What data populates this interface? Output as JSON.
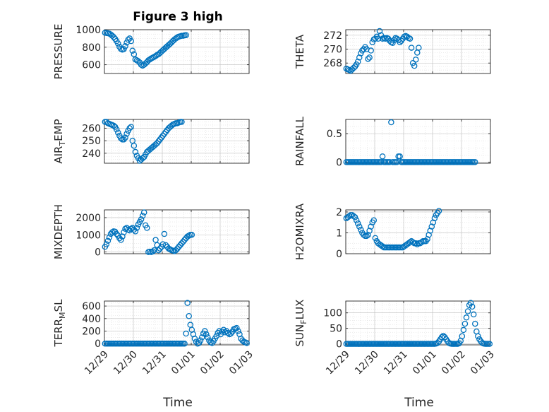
{
  "figure": {
    "title": "Figure 3 high",
    "x_label": "Time"
  },
  "chart_data": [
    {
      "type": "scatter",
      "name": "pressure",
      "title": "Figure 3 high",
      "ylabel": "PRESSURE",
      "ylim": [
        500,
        1000
      ],
      "yticks": [
        600,
        800,
        1000
      ],
      "ytick_labels": [
        "600",
        "800",
        "1000"
      ],
      "xlim": [
        0,
        5
      ],
      "xticks": [
        0,
        1,
        2,
        3,
        4,
        5
      ],
      "xtick_labels": [],
      "x_start": 0.02,
      "x_step": 0.05,
      "y": [
        965,
        962,
        960,
        955,
        945,
        930,
        915,
        895,
        870,
        842,
        805,
        780,
        772,
        778,
        812,
        852,
        885,
        900,
        870,
        760,
        720,
        660,
        650,
        640,
        625,
        600,
        590,
        600,
        615,
        630,
        650,
        660,
        672,
        680,
        690,
        700,
        712,
        720,
        735,
        750,
        765,
        780,
        795,
        810,
        825,
        840,
        855,
        872,
        888,
        900,
        912,
        920,
        925,
        930,
        930,
        935,
        938
      ]
    },
    {
      "type": "scatter",
      "name": "theta",
      "ylabel": "THETA",
      "ylim": [
        266.5,
        272.8
      ],
      "yticks": [
        268,
        270,
        272
      ],
      "ytick_labels": [
        "268",
        "270",
        "272"
      ],
      "xlim": [
        0,
        5
      ],
      "xticks": [
        0,
        1,
        2,
        3,
        4,
        5
      ],
      "xtick_labels": [],
      "x_start": 0.02,
      "x_step": 0.05,
      "y": [
        267.2,
        267.1,
        267.0,
        266.9,
        267.1,
        267.3,
        267.5,
        267.8,
        268.2,
        268.8,
        269.4,
        269.8,
        270.0,
        270.3,
        270.0,
        268.6,
        268.8,
        269.8,
        271.0,
        271.4,
        271.5,
        271.8,
        271.5,
        272.6,
        272.0,
        271.5,
        271.6,
        271.5,
        271.6,
        271.5,
        271.2,
        271.0,
        270.9,
        271.3,
        271.6,
        271.5,
        271.3,
        271.0,
        271.2,
        271.5,
        271.8,
        271.9,
        271.8,
        271.6,
        271.5,
        270.2,
        268.0,
        267.6,
        268.5,
        269.5,
        270.2
      ]
    },
    {
      "type": "scatter",
      "name": "air_temp",
      "ylabel": "AIR",
      "ylabel_sub": "T",
      "ylabel_rest": "EMP",
      "ylim": [
        232,
        267
      ],
      "yticks": [
        240,
        250,
        260
      ],
      "ytick_labels": [
        "240",
        "250",
        "260"
      ],
      "xlim": [
        0,
        5
      ],
      "xticks": [
        0,
        1,
        2,
        3,
        4,
        5
      ],
      "xtick_labels": [],
      "x_start": 0.02,
      "x_step": 0.05,
      "y": [
        265,
        265,
        264,
        263.5,
        263,
        262.5,
        262,
        261,
        259,
        256.5,
        254,
        252,
        251,
        251,
        252.5,
        255.5,
        258,
        260,
        261,
        250,
        246,
        241,
        238,
        236,
        234,
        235,
        236,
        237,
        239,
        241,
        242,
        243,
        244,
        245,
        246,
        247,
        248,
        249.5,
        251,
        252.5,
        254,
        255.5,
        257,
        258.5,
        260,
        261,
        262,
        263,
        263.5,
        264,
        264,
        264.5,
        265,
        265
      ]
    },
    {
      "type": "scatter",
      "name": "rainfall",
      "ylabel": "RAINFALL",
      "ylim": [
        -0.02,
        0.75
      ],
      "yticks": [
        0,
        0.5
      ],
      "ytick_labels": [
        "0",
        "0.5"
      ],
      "xlim": [
        0,
        5
      ],
      "xticks": [
        0,
        1,
        2,
        3,
        4,
        5
      ],
      "xtick_labels": [],
      "x_start": 0.02,
      "x_step": 0.05,
      "y": [
        0,
        0,
        0,
        0,
        0,
        0,
        0,
        0,
        0,
        0,
        0,
        0,
        0,
        0,
        0,
        0,
        0,
        0,
        0,
        0,
        0,
        0,
        0,
        0,
        0,
        0.1,
        0,
        0,
        0,
        0,
        0,
        0.7,
        0,
        0,
        0,
        0,
        0.1,
        0.1,
        0,
        0,
        0,
        0,
        0,
        0,
        0,
        0,
        0,
        0,
        0,
        0,
        0,
        0,
        0,
        0,
        0,
        0,
        0,
        0,
        0,
        0,
        0,
        0,
        0,
        0,
        0,
        0,
        0,
        0,
        0,
        0,
        0,
        0,
        0,
        0,
        0,
        0,
        0,
        0,
        0,
        0,
        0,
        0,
        0,
        0,
        0,
        0,
        0,
        0,
        0,
        0
      ]
    },
    {
      "type": "scatter",
      "name": "mixdepth",
      "ylabel": "MIXDEPTH",
      "ylim": [
        -100,
        2450
      ],
      "yticks": [
        0,
        1000,
        2000
      ],
      "ytick_labels": [
        "0",
        "1000",
        "2000"
      ],
      "xlim": [
        0,
        5
      ],
      "xticks": [
        0,
        1,
        2,
        3,
        4,
        5
      ],
      "xtick_labels": [],
      "x_start": 0.02,
      "x_step": 0.05,
      "y": [
        300,
        450,
        650,
        850,
        1050,
        1150,
        1200,
        1180,
        1050,
        950,
        800,
        700,
        900,
        1150,
        1350,
        1400,
        1300,
        1250,
        1350,
        1400,
        1300,
        1200,
        1400,
        1600,
        1750,
        1900,
        2100,
        2300,
        1550,
        1400,
        0,
        20,
        0,
        30,
        100,
        700,
        400,
        100,
        200,
        300,
        450,
        1050,
        400,
        300,
        200,
        150,
        100,
        80,
        50,
        100,
        200,
        300,
        400,
        500,
        600,
        700,
        800,
        900,
        950,
        1000,
        1000
      ]
    },
    {
      "type": "scatter",
      "name": "h2omixra",
      "ylabel": "H2OMIXRA",
      "ylim": [
        0,
        2.1
      ],
      "yticks": [
        0,
        1,
        2
      ],
      "ytick_labels": [
        "0",
        "1",
        "2"
      ],
      "xlim": [
        0,
        5
      ],
      "xticks": [
        0,
        1,
        2,
        3,
        4,
        5
      ],
      "xtick_labels": [],
      "x_start": 0.02,
      "x_step": 0.05,
      "y": [
        1.7,
        1.75,
        1.8,
        1.85,
        1.85,
        1.8,
        1.75,
        1.6,
        1.45,
        1.3,
        1.15,
        1.0,
        0.9,
        0.85,
        0.85,
        0.9,
        1.1,
        1.3,
        1.5,
        1.6,
        0.75,
        0.6,
        0.5,
        0.45,
        0.4,
        0.35,
        0.3,
        0.3,
        0.3,
        0.3,
        0.3,
        0.3,
        0.3,
        0.3,
        0.3,
        0.3,
        0.3,
        0.3,
        0.3,
        0.3,
        0.35,
        0.4,
        0.45,
        0.5,
        0.55,
        0.6,
        0.55,
        0.5,
        0.5,
        0.45,
        0.5,
        0.5,
        0.55,
        0.6,
        0.6,
        0.6,
        0.7,
        0.9,
        1.1,
        1.3,
        1.5,
        1.7,
        1.85,
        1.95,
        2.05
      ]
    },
    {
      "type": "scatter",
      "name": "terr_msl",
      "ylabel": "TERR",
      "ylabel_sub": "M",
      "ylabel_rest": "SL",
      "ylim": [
        -20,
        680
      ],
      "yticks": [
        0,
        200,
        400,
        600
      ],
      "ytick_labels": [
        "0",
        "200",
        "400",
        "600"
      ],
      "xlim": [
        0,
        5
      ],
      "xticks": [
        0,
        1,
        2,
        3,
        4,
        5
      ],
      "xtick_labels": [],
      "x_start": 0.02,
      "x_step": 0.05,
      "y": [
        0,
        0,
        0,
        0,
        0,
        0,
        0,
        0,
        0,
        0,
        0,
        0,
        0,
        0,
        0,
        0,
        0,
        0,
        0,
        0,
        0,
        0,
        0,
        0,
        0,
        0,
        0,
        0,
        0,
        0,
        0,
        0,
        0,
        0,
        0,
        0,
        0,
        0,
        0,
        0,
        0,
        0,
        0,
        0,
        0,
        0,
        0,
        0,
        0,
        0,
        0,
        0,
        0,
        0,
        0,
        0,
        160,
        650,
        440,
        300,
        220,
        150,
        80,
        30,
        0,
        10,
        50,
        100,
        160,
        200,
        150,
        100,
        50,
        20,
        10,
        40,
        80,
        120,
        170,
        200,
        150,
        190,
        220,
        180,
        200,
        170,
        150,
        160,
        190,
        230,
        240,
        250,
        200,
        150,
        80,
        50,
        30,
        20,
        10
      ]
    },
    {
      "type": "scatter",
      "name": "sun_flux",
      "ylabel": "SUN",
      "ylabel_sub": "F",
      "ylabel_rest": "LUX",
      "ylim": [
        -3,
        138
      ],
      "yticks": [
        0,
        50,
        100
      ],
      "ytick_labels": [
        "0",
        "50",
        "100"
      ],
      "xlim": [
        0,
        5
      ],
      "xticks": [
        0,
        1,
        2,
        3,
        4,
        5
      ],
      "xtick_labels": [
        "12/29",
        "12/30",
        "12/31",
        "01/01",
        "01/02",
        "01/03"
      ],
      "x_start": 0.02,
      "x_step": 0.05,
      "y": [
        0,
        0,
        0,
        0,
        0,
        0,
        0,
        0,
        0,
        0,
        0,
        0,
        0,
        0,
        0,
        0,
        0,
        0,
        0,
        0,
        0,
        0,
        0,
        0,
        0,
        0,
        0,
        0,
        0,
        0,
        0,
        0,
        0,
        0,
        0,
        0,
        0,
        0,
        0,
        0,
        0,
        0,
        0,
        0,
        0,
        0,
        0,
        0,
        0,
        0,
        0,
        0,
        0,
        0,
        0,
        0,
        0,
        0,
        0,
        0,
        0,
        0,
        1,
        3,
        8,
        15,
        22,
        26,
        22,
        15,
        8,
        3,
        1,
        0,
        0,
        0,
        0,
        0,
        2,
        10,
        25,
        45,
        65,
        85,
        105,
        125,
        132,
        120,
        95,
        65,
        40,
        25,
        15,
        8,
        3,
        1,
        0,
        0,
        0,
        0,
        0,
        0
      ]
    }
  ]
}
